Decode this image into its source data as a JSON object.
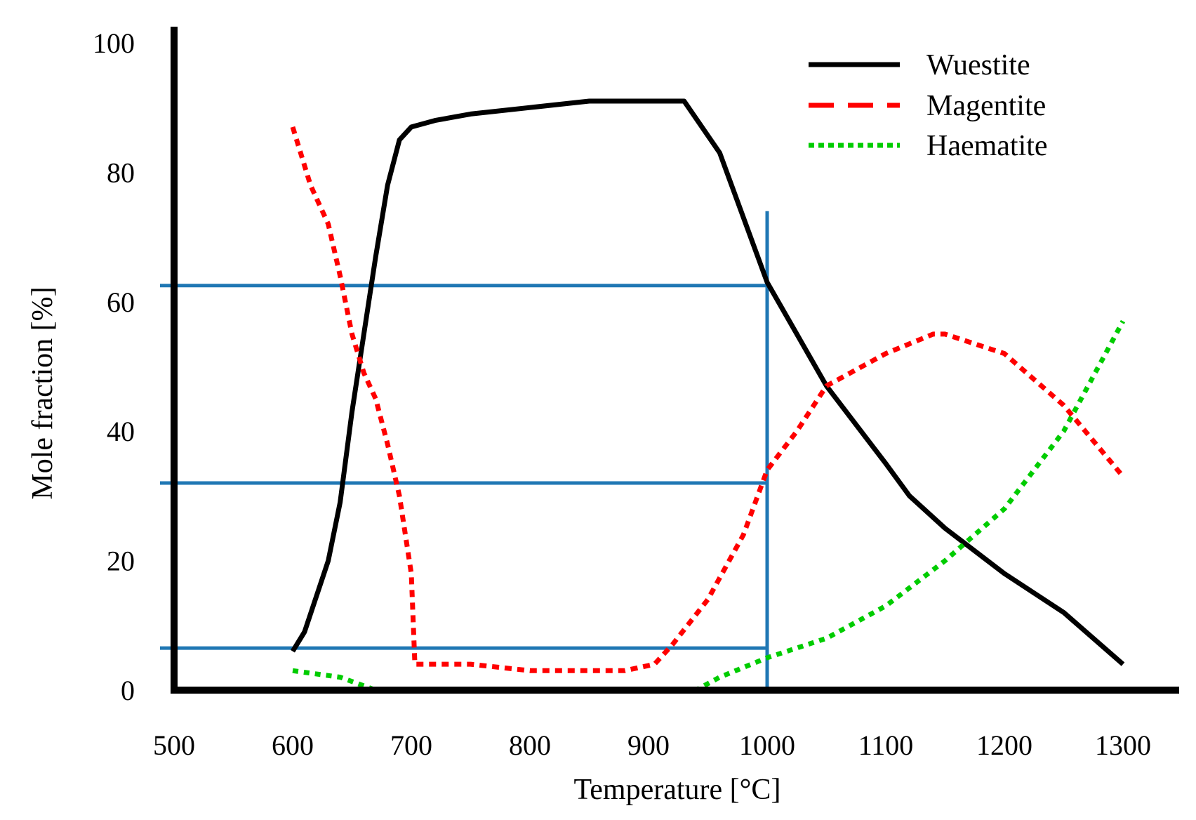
{
  "chart_data": {
    "type": "line",
    "title": "",
    "xlabel": "Temperature [°C]",
    "ylabel": "Mole fraction [%]",
    "xlim": [
      500,
      1350
    ],
    "ylim": [
      0,
      100
    ],
    "xticks": [
      500,
      600,
      700,
      800,
      900,
      1000,
      1100,
      1200,
      1300
    ],
    "yticks": [
      0,
      20,
      40,
      60,
      80,
      100
    ],
    "grid": false,
    "legend_position": "top-right",
    "series": [
      {
        "name": "Wuestite",
        "style": "solid",
        "color": "#000000",
        "points": [
          [
            600,
            6
          ],
          [
            610,
            9
          ],
          [
            630,
            20
          ],
          [
            640,
            29
          ],
          [
            650,
            43
          ],
          [
            660,
            55
          ],
          [
            670,
            67
          ],
          [
            680,
            78
          ],
          [
            690,
            85
          ],
          [
            700,
            87
          ],
          [
            720,
            88
          ],
          [
            750,
            89
          ],
          [
            800,
            90
          ],
          [
            850,
            91
          ],
          [
            900,
            91
          ],
          [
            930,
            91
          ],
          [
            960,
            83
          ],
          [
            1000,
            63
          ],
          [
            1025,
            55
          ],
          [
            1050,
            47
          ],
          [
            1100,
            35
          ],
          [
            1120,
            30
          ],
          [
            1150,
            25
          ],
          [
            1200,
            18
          ],
          [
            1250,
            12
          ],
          [
            1300,
            4
          ]
        ]
      },
      {
        "name": "Magentite",
        "style": "dashed",
        "color": "#ff0000",
        "points": [
          [
            600,
            87
          ],
          [
            615,
            78
          ],
          [
            630,
            72
          ],
          [
            640,
            64
          ],
          [
            650,
            55
          ],
          [
            660,
            49
          ],
          [
            670,
            45
          ],
          [
            680,
            38
          ],
          [
            690,
            30
          ],
          [
            700,
            18
          ],
          [
            703,
            4
          ],
          [
            750,
            4
          ],
          [
            800,
            3
          ],
          [
            850,
            3
          ],
          [
            880,
            3
          ],
          [
            905,
            4
          ],
          [
            920,
            7
          ],
          [
            950,
            14
          ],
          [
            980,
            24
          ],
          [
            1000,
            34
          ],
          [
            1025,
            40
          ],
          [
            1050,
            47
          ],
          [
            1100,
            52
          ],
          [
            1140,
            55
          ],
          [
            1150,
            55
          ],
          [
            1200,
            52
          ],
          [
            1250,
            44
          ],
          [
            1300,
            33
          ]
        ]
      },
      {
        "name": "Haematite",
        "style": "dotted",
        "color": "#00cc00",
        "points": [
          [
            600,
            3
          ],
          [
            640,
            2
          ],
          [
            670,
            0
          ],
          [
            700,
            0
          ],
          [
            800,
            0
          ],
          [
            900,
            0
          ],
          [
            940,
            0
          ],
          [
            960,
            2
          ],
          [
            1000,
            5
          ],
          [
            1050,
            8
          ],
          [
            1100,
            13
          ],
          [
            1150,
            20
          ],
          [
            1200,
            28
          ],
          [
            1250,
            40
          ],
          [
            1300,
            57
          ]
        ]
      }
    ],
    "reference_lines": {
      "color": "#1f77b4",
      "vertical": [
        {
          "x": 1000,
          "y_from": 0,
          "y_to": 74
        }
      ],
      "horizontal": [
        {
          "y": 62.5,
          "x_from": 500,
          "x_to": 1000
        },
        {
          "y": 32,
          "x_from": 500,
          "x_to": 1000
        },
        {
          "y": 6.5,
          "x_from": 500,
          "x_to": 1000
        }
      ]
    }
  }
}
